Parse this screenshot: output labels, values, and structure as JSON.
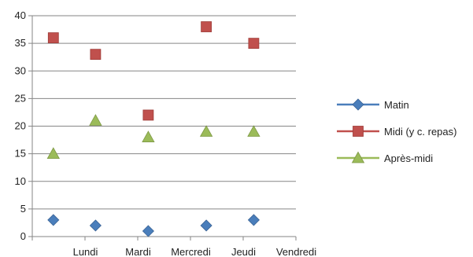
{
  "chart_data": {
    "type": "scatter",
    "categories": [
      "Lundi",
      "Mardi",
      "Mercredi",
      "Jeudi",
      "Vendredi"
    ],
    "ylim": [
      0,
      40
    ],
    "yticks": [
      0,
      5,
      10,
      15,
      20,
      25,
      30,
      35,
      40
    ],
    "grid": "horizontal",
    "legend_position": "right",
    "series": [
      {
        "name": "Matin",
        "color": "#4A7EBB",
        "marker": "diamond",
        "values": [
          3,
          2,
          1,
          2,
          3
        ]
      },
      {
        "name": "Midi (y c. repas)",
        "color": "#C0504D",
        "marker": "square",
        "values": [
          36,
          33,
          22,
          38,
          35
        ]
      },
      {
        "name": "Après-midi",
        "color": "#9BBB59",
        "marker": "triangle",
        "values": [
          15,
          21,
          18,
          19,
          19
        ]
      }
    ]
  }
}
